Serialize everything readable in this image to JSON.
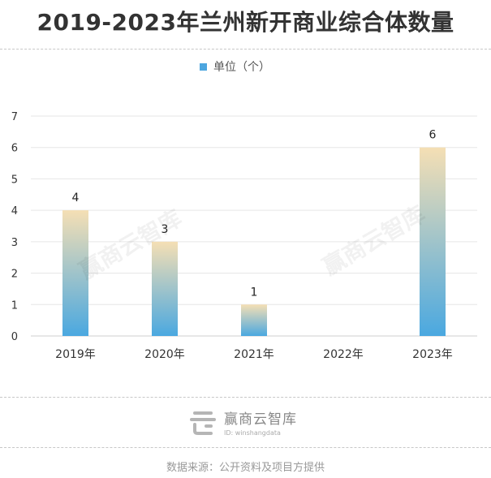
{
  "title": "2019-2023年兰州新开商业综合体数量",
  "legend": {
    "label": "单位（个）",
    "color": "#4da6df"
  },
  "watermark_text": "赢商云智库",
  "footer": {
    "brand": "赢商云智库",
    "id_text": "ID: winshangdata",
    "source": "数据来源：公开资料及项目方提供"
  },
  "chart_data": {
    "type": "bar",
    "categories": [
      "2019年",
      "2020年",
      "2021年",
      "2022年",
      "2023年"
    ],
    "series": [
      {
        "name": "单位（个）",
        "values": [
          4,
          3,
          1,
          0,
          6
        ]
      }
    ],
    "data_labels": [
      "4",
      "3",
      "1",
      "",
      "6"
    ],
    "ylim": [
      0,
      7
    ],
    "yticks": [
      0,
      1,
      2,
      3,
      4,
      5,
      6,
      7
    ],
    "grid": true,
    "legend_position": "top-center",
    "bar_gradient": {
      "top": "#f5dfb4",
      "bottom": "#4aa8e0"
    }
  }
}
